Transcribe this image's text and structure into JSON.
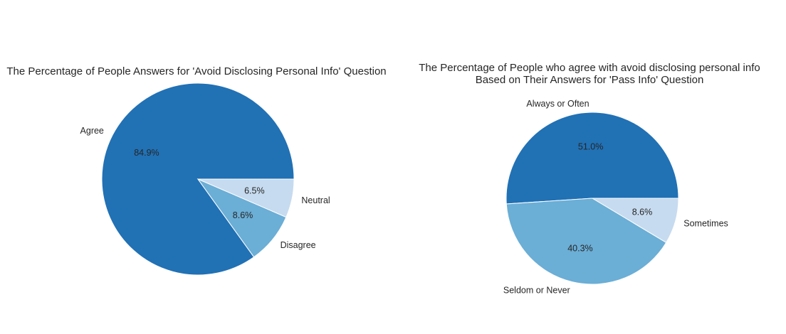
{
  "chart_data": [
    {
      "type": "pie",
      "title": "The Percentage of People Answers for 'Avoid Disclosing Personal Info' Question",
      "categories": [
        "Agree",
        "Disagree",
        "Neutral"
      ],
      "values": [
        84.9,
        8.6,
        6.5
      ],
      "value_labels": [
        "84.9%",
        "8.6%",
        "6.5%"
      ],
      "colors": [
        "#2171b5",
        "#6baed6",
        "#c6dbef"
      ]
    },
    {
      "type": "pie",
      "title": "The Percentage of People who agree with avoid disclosing personal info\nBased on Their Answers for 'Pass Info' Question",
      "categories": [
        "Always or Often",
        "Seldom or Never",
        "Sometimes"
      ],
      "values": [
        51.0,
        40.3,
        8.6
      ],
      "value_labels": [
        "51.0%",
        "40.3%",
        "8.6%"
      ],
      "colors": [
        "#2171b5",
        "#6baed6",
        "#c6dbef"
      ]
    }
  ]
}
